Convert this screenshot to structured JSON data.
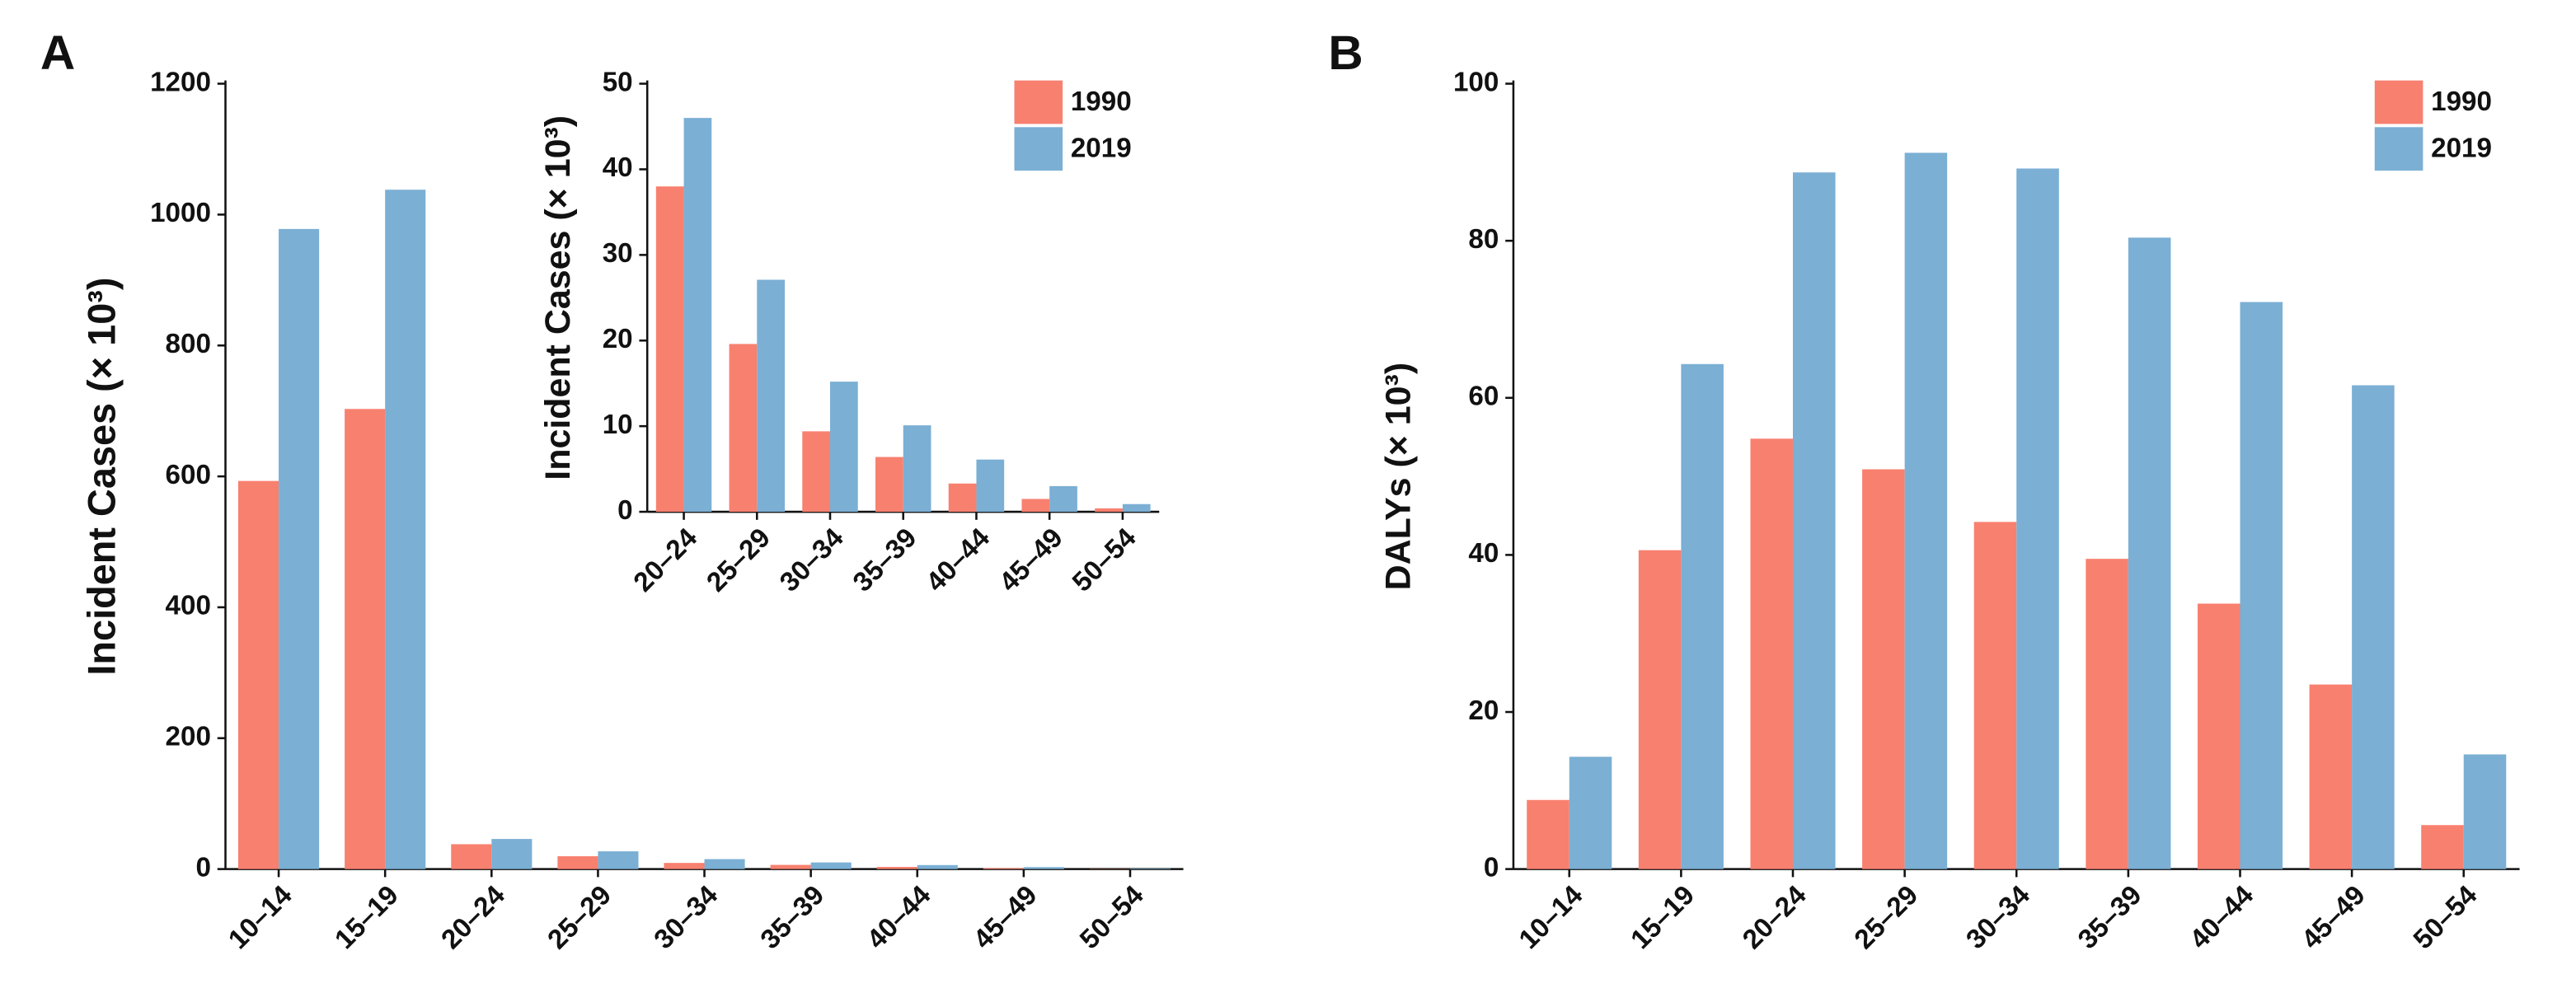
{
  "chart_data": [
    {
      "type": "bar",
      "panel": "A",
      "ylabel": "Incident Cases (× 10³)",
      "categories": [
        "10–14",
        "15–19",
        "20–24",
        "25–29",
        "30–34",
        "35–39",
        "40–44",
        "45–49",
        "50–54"
      ],
      "series": [
        {
          "color": "#f8806f",
          "values": [
            593,
            703,
            38,
            19.6,
            9.4,
            6.4,
            3.3,
            1.5,
            0.4
          ]
        },
        {
          "color": "#7bafd4",
          "values": [
            978,
            1038,
            46,
            27.1,
            15.2,
            10.1,
            6.1,
            3.0,
            0.9
          ]
        }
      ],
      "ylim": [
        0,
        1200
      ],
      "yticks": [
        0,
        200,
        400,
        600,
        800,
        1000,
        1200
      ],
      "grid": false
    },
    {
      "type": "bar",
      "ylabel": "Incident Cases (× 10³)",
      "categories": [
        "20–24",
        "25–29",
        "30–34",
        "35–39",
        "40–44",
        "45–49",
        "50–54"
      ],
      "series": [
        {
          "name": "1990",
          "color": "#f8806f",
          "values": [
            38,
            19.6,
            9.4,
            6.4,
            3.3,
            1.5,
            0.4
          ]
        },
        {
          "name": "2019",
          "color": "#7bafd4",
          "values": [
            46,
            27.1,
            15.2,
            10.1,
            6.1,
            3.0,
            0.9
          ]
        }
      ],
      "ylim": [
        0,
        50
      ],
      "yticks": [
        0,
        10,
        20,
        30,
        40,
        50
      ],
      "grid": false,
      "legend": "upper right"
    },
    {
      "type": "bar",
      "panel": "B",
      "ylabel": "DALYs (× 10³)",
      "categories": [
        "10–14",
        "15–19",
        "20–24",
        "25–29",
        "30–34",
        "35–39",
        "40–44",
        "45–49",
        "50–54"
      ],
      "series": [
        {
          "name": "1990",
          "color": "#f8806f",
          "values": [
            8.8,
            40.6,
            54.8,
            50.9,
            44.2,
            39.5,
            33.8,
            23.5,
            5.6
          ]
        },
        {
          "name": "2019",
          "color": "#7bafd4",
          "values": [
            14.3,
            64.3,
            88.7,
            91.2,
            89.2,
            80.4,
            72.2,
            61.6,
            14.6
          ]
        }
      ],
      "ylim": [
        0,
        100
      ],
      "yticks": [
        0,
        20,
        40,
        60,
        80,
        100
      ],
      "grid": false,
      "legend": "upper right"
    }
  ]
}
